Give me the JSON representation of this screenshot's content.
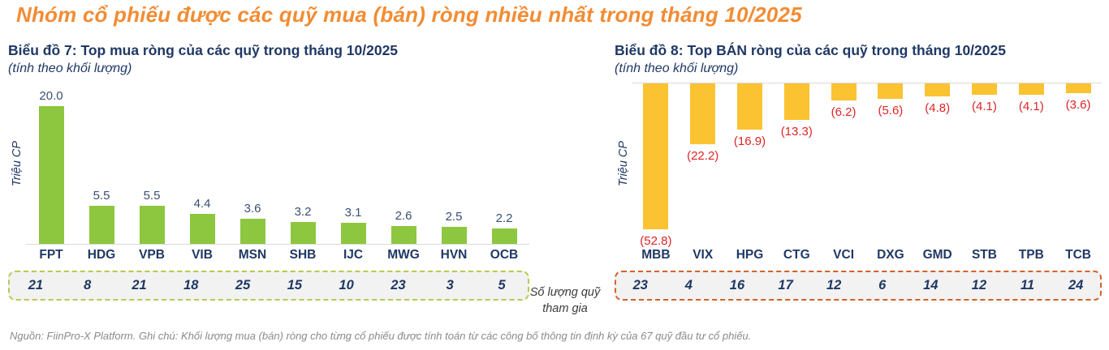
{
  "page": {
    "title": "Nhóm cổ phiếu được các quỹ mua (bán) ròng nhiều nhất trong tháng 10/2025",
    "funds_label": "Số lượng quỹ tham gia",
    "footer": "Nguồn: FiinPro-X Platform. Ghi chú: Khối lượng mua (bán) ròng cho từng cổ phiếu được tính toán từ các công bố thông tin định kỳ của 67 quỹ đầu tư cổ phiếu."
  },
  "colors": {
    "main_title": "#F28C33",
    "heading_navy": "#1F3864",
    "buy_bar_green": "#8DC63F",
    "sell_bar_yellow": "#FBC232",
    "sell_value_red": "#DE2424",
    "count_box_bg": "#F2F2F2",
    "buy_box_border": "#B2CC4F",
    "sell_box_border": "#D2622A",
    "axis_line": "#D9D9D9"
  },
  "chart_data": [
    {
      "type": "bar",
      "title": "Biểu đồ 7: Top mua ròng của các quỹ trong tháng 10/2025",
      "subtitle": "(tính theo khối lượng)",
      "ylabel": "Triệu CP",
      "direction": "up",
      "bar_color": "#8DC63F",
      "categories": [
        "FPT",
        "HDG",
        "VPB",
        "VIB",
        "MSN",
        "SHB",
        "IJC",
        "MWG",
        "HVN",
        "OCB"
      ],
      "values": [
        20.0,
        5.5,
        5.5,
        4.4,
        3.6,
        3.2,
        3.1,
        2.6,
        2.5,
        2.2
      ],
      "value_labels": [
        "20.0",
        "5.5",
        "5.5",
        "4.4",
        "3.6",
        "3.2",
        "3.1",
        "2.6",
        "2.5",
        "2.2"
      ],
      "fund_counts": [
        21,
        8,
        21,
        18,
        25,
        15,
        10,
        23,
        3,
        5
      ],
      "ylim": [
        0,
        20
      ],
      "grid": false,
      "legend": false
    },
    {
      "type": "bar",
      "title": "Biểu đồ 8: Top BÁN ròng của các quỹ trong tháng 10/2025",
      "subtitle": "(tính theo khối lượng)",
      "ylabel": "Triệu CP",
      "direction": "down",
      "bar_color": "#FBC232",
      "categories": [
        "MBB",
        "VIX",
        "HPG",
        "CTG",
        "VCI",
        "DXG",
        "GMD",
        "STB",
        "TPB",
        "TCB"
      ],
      "values": [
        52.8,
        22.2,
        16.9,
        13.3,
        6.2,
        5.6,
        4.8,
        4.1,
        4.1,
        3.6
      ],
      "value_labels": [
        "(52.8)",
        "(22.2)",
        "(16.9)",
        "(13.3)",
        "(6.2)",
        "(5.6)",
        "(4.8)",
        "(4.1)",
        "(4.1)",
        "(3.6)"
      ],
      "fund_counts": [
        23,
        4,
        16,
        17,
        12,
        6,
        14,
        12,
        11,
        24
      ],
      "ylim": [
        -52.8,
        0
      ],
      "grid": false,
      "legend": false
    }
  ]
}
